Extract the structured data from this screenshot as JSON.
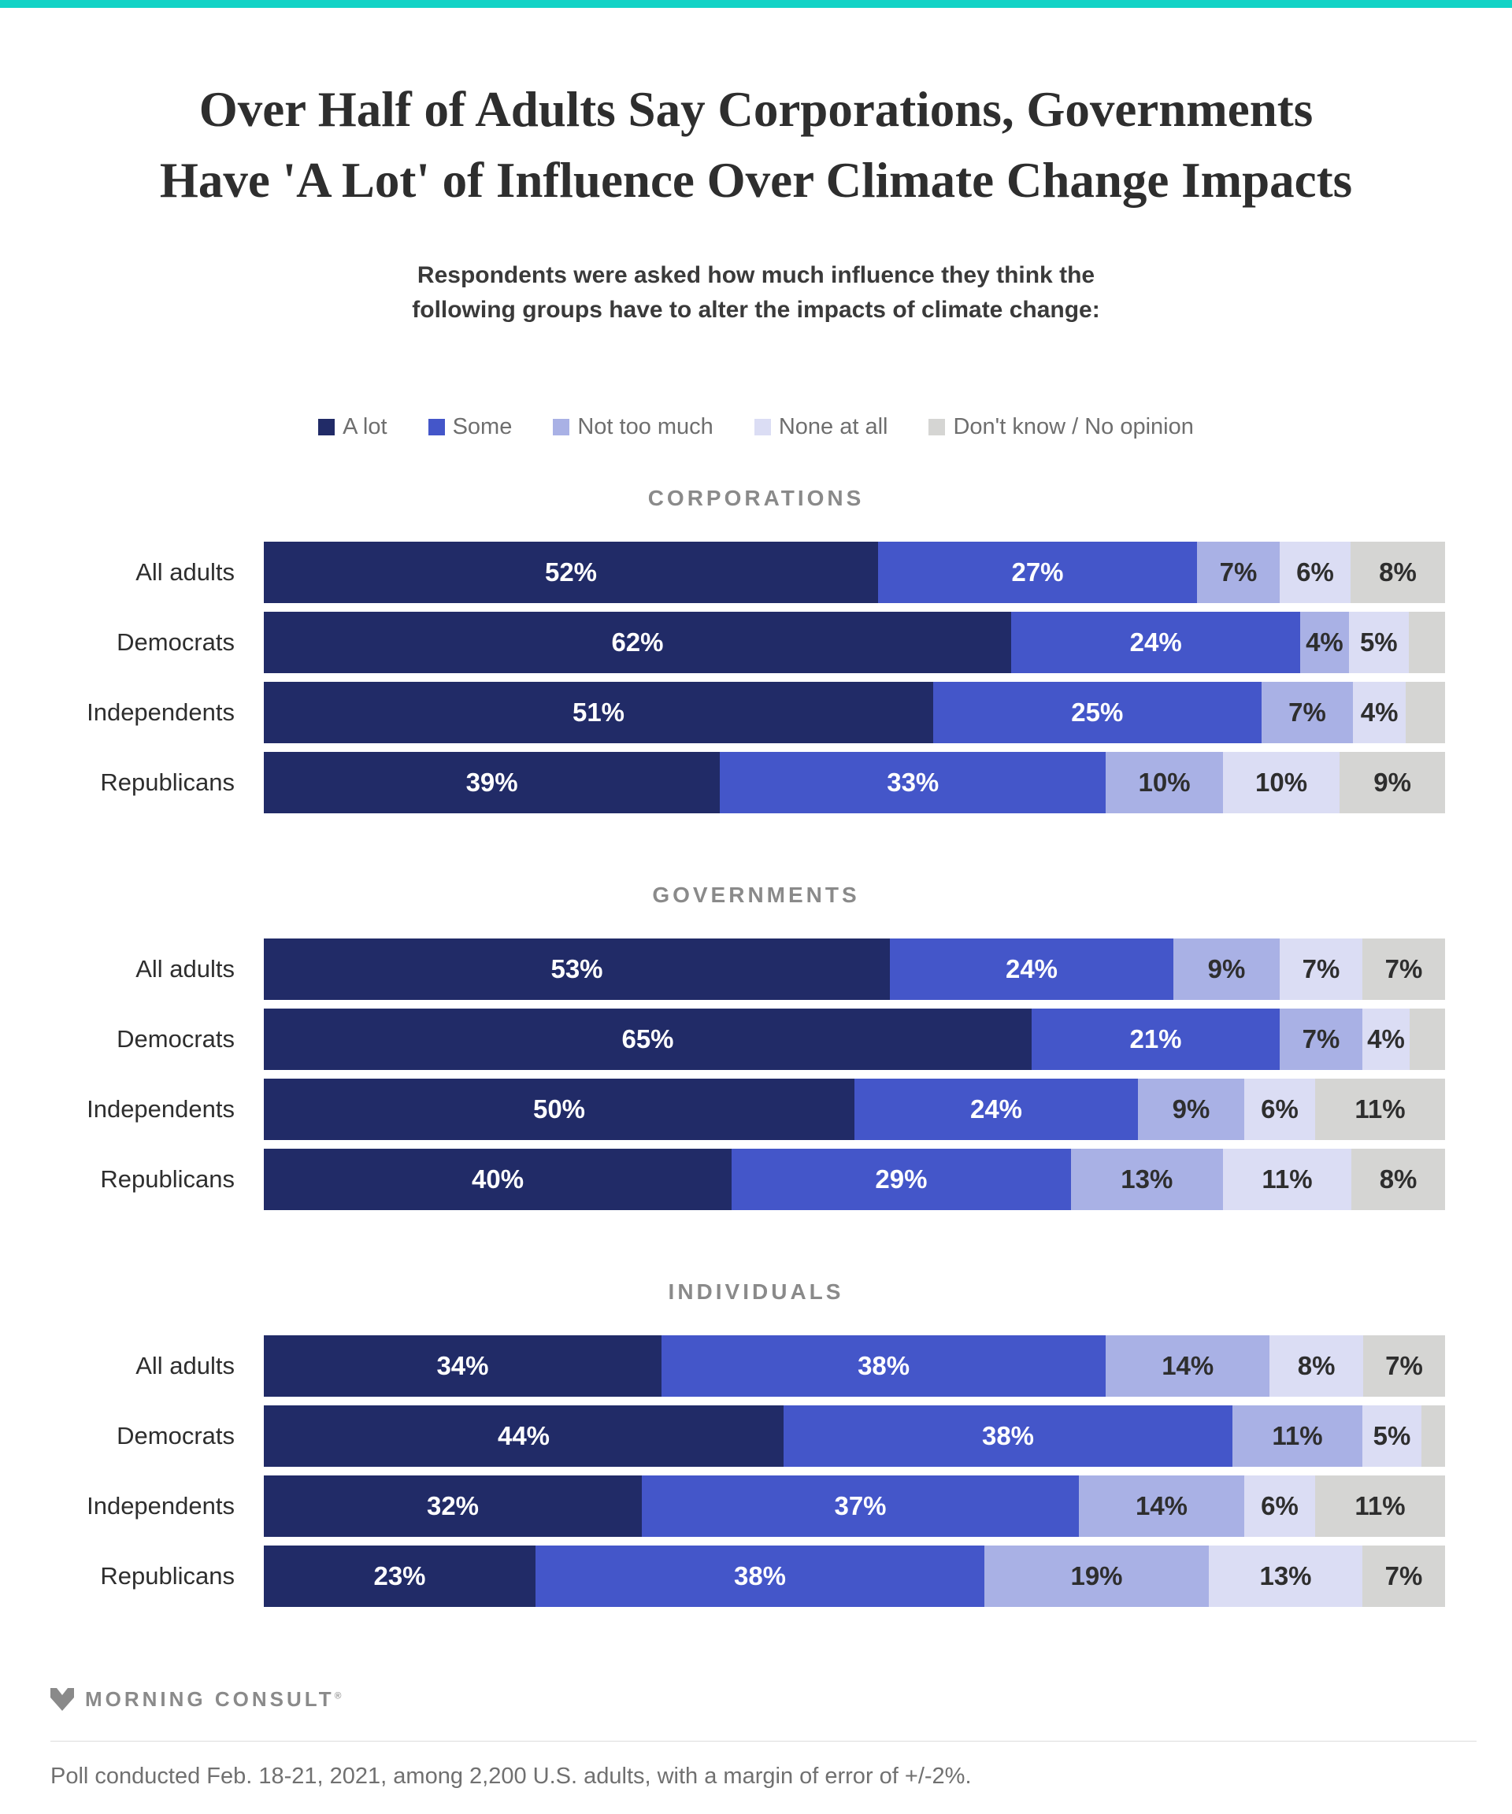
{
  "page": {
    "accent_color": "#12d3c6",
    "background": "#ffffff"
  },
  "title": {
    "line1": "Over Half of Adults Say Corporations, Governments",
    "line2": "Have 'A Lot' of Influence Over Climate Change Impacts"
  },
  "subtitle": {
    "line1": "Respondents were asked how much influence they think the",
    "line2": "following groups have to alter the impacts of climate change:"
  },
  "legend": {
    "items": [
      {
        "label": "A lot",
        "color": "#212b67"
      },
      {
        "label": "Some",
        "color": "#4456c9"
      },
      {
        "label": "Not too much",
        "color": "#a9b1e5"
      },
      {
        "label": "None at all",
        "color": "#dbddf4"
      },
      {
        "label": "Don't know / No opinion",
        "color": "#d5d5d3"
      }
    ]
  },
  "chart_data": {
    "type": "bar",
    "variant": "horizontal-stacked",
    "unit": "percent",
    "grid": false,
    "legend_position": "top-center",
    "series": [
      "A lot",
      "Some",
      "Not too much",
      "None at all",
      "Don't know / No opinion"
    ],
    "series_colors": [
      "#212b67",
      "#4456c9",
      "#a9b1e5",
      "#dbddf4",
      "#d5d5d3"
    ],
    "label_text_colors": [
      "#ffffff",
      "#ffffff",
      "#2e2e2e",
      "#2e2e2e",
      "#2e2e2e"
    ],
    "sections": [
      {
        "title": "CORPORATIONS",
        "rows": [
          {
            "category": "All adults",
            "values": [
              52,
              27,
              7,
              6,
              8
            ],
            "value_labels": [
              "52%",
              "27%",
              "7%",
              "6%",
              "8%"
            ]
          },
          {
            "category": "Democrats",
            "values": [
              62,
              24,
              4,
              5,
              3
            ],
            "value_labels": [
              "62%",
              "24%",
              "4%",
              "5%",
              ""
            ]
          },
          {
            "category": "Independents",
            "values": [
              51,
              25,
              7,
              4,
              3
            ],
            "value_labels": [
              "51%",
              "25%",
              "7%",
              "4%",
              ""
            ]
          },
          {
            "category": "Republicans",
            "values": [
              39,
              33,
              10,
              10,
              9
            ],
            "value_labels": [
              "39%",
              "33%",
              "10%",
              "10%",
              "9%"
            ]
          }
        ]
      },
      {
        "title": "GOVERNMENTS",
        "rows": [
          {
            "category": "All adults",
            "values": [
              53,
              24,
              9,
              7,
              7
            ],
            "value_labels": [
              "53%",
              "24%",
              "9%",
              "7%",
              "7%"
            ]
          },
          {
            "category": "Democrats",
            "values": [
              65,
              21,
              7,
              4,
              3
            ],
            "value_labels": [
              "65%",
              "21%",
              "7%",
              "4%",
              ""
            ]
          },
          {
            "category": "Independents",
            "values": [
              50,
              24,
              9,
              6,
              11
            ],
            "value_labels": [
              "50%",
              "24%",
              "9%",
              "6%",
              "11%"
            ]
          },
          {
            "category": "Republicans",
            "values": [
              40,
              29,
              13,
              11,
              8
            ],
            "value_labels": [
              "40%",
              "29%",
              "13%",
              "11%",
              "8%"
            ]
          }
        ]
      },
      {
        "title": "INDIVIDUALS",
        "rows": [
          {
            "category": "All adults",
            "values": [
              34,
              38,
              14,
              8,
              7
            ],
            "value_labels": [
              "34%",
              "38%",
              "14%",
              "8%",
              "7%"
            ]
          },
          {
            "category": "Democrats",
            "values": [
              44,
              38,
              11,
              5,
              2
            ],
            "value_labels": [
              "44%",
              "38%",
              "11%",
              "5%",
              ""
            ]
          },
          {
            "category": "Independents",
            "values": [
              32,
              37,
              14,
              6,
              11
            ],
            "value_labels": [
              "32%",
              "37%",
              "14%",
              "6%",
              "11%"
            ]
          },
          {
            "category": "Republicans",
            "values": [
              23,
              38,
              19,
              13,
              7
            ],
            "value_labels": [
              "23%",
              "38%",
              "19%",
              "13%",
              "7%"
            ]
          }
        ]
      }
    ]
  },
  "footer": {
    "brand": "MORNING CONSULT",
    "registered_mark": "®",
    "note": "Poll conducted Feb. 18-21, 2021, among 2,200 U.S. adults, with a margin of error of +/-2%."
  }
}
